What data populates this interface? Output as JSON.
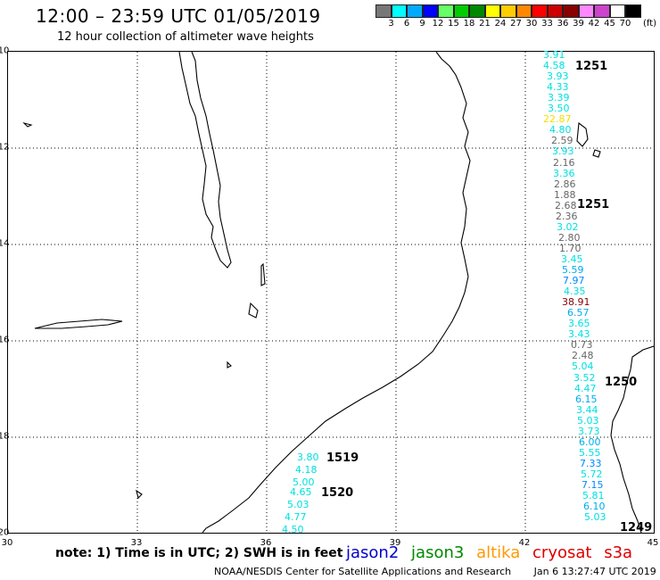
{
  "header": {
    "title": "12:00 – 23:59 UTC 01/05/2019",
    "subtitle": "12 hour collection of altimeter wave heights"
  },
  "legend": {
    "unit": "(ft)",
    "colors": [
      "#777777",
      "#00ffff",
      "#00aaff",
      "#0000ff",
      "#66ff66",
      "#00cc00",
      "#008800",
      "#ffff00",
      "#ffcc00",
      "#ff8800",
      "#ff0000",
      "#cc0000",
      "#880000",
      "#ff88ff",
      "#cc44cc",
      "#ffffff",
      "#000000"
    ],
    "labels": [
      "3",
      "6",
      "9",
      "12",
      "15",
      "18",
      "21",
      "24",
      "27",
      "30",
      "33",
      "36",
      "39",
      "42",
      "45",
      "70"
    ]
  },
  "axes": {
    "lat_labels": [
      "-10",
      "-12",
      "-14",
      "-16",
      "-18",
      "-20"
    ],
    "lon_labels": [
      "30",
      "33",
      "36",
      "39",
      "42",
      "45"
    ]
  },
  "observations_east": [
    {
      "v": "3.91",
      "c": "#00e0e0"
    },
    {
      "v": "4.58",
      "c": "#00e0e0"
    },
    {
      "v": "3.93",
      "c": "#00e0e0"
    },
    {
      "v": "4.33",
      "c": "#00e0e0"
    },
    {
      "v": "3.39",
      "c": "#00e0e0"
    },
    {
      "v": "3.50",
      "c": "#00e0e0"
    },
    {
      "v": "22.87",
      "c": "#f0e000"
    },
    {
      "v": "4.80",
      "c": "#00e0e0"
    },
    {
      "v": "2.59",
      "c": "#666666"
    },
    {
      "v": "3.93",
      "c": "#00e0e0"
    },
    {
      "v": "2.16",
      "c": "#666666"
    },
    {
      "v": "3.36",
      "c": "#00e0e0"
    },
    {
      "v": "2.86",
      "c": "#666666"
    },
    {
      "v": "1.88",
      "c": "#666666"
    },
    {
      "v": "2.68",
      "c": "#666666"
    },
    {
      "v": "2.36",
      "c": "#666666"
    },
    {
      "v": "3.02",
      "c": "#00e0e0"
    },
    {
      "v": "2.80",
      "c": "#666666"
    },
    {
      "v": "1.70",
      "c": "#666666"
    },
    {
      "v": "3.45",
      "c": "#00e0e0"
    },
    {
      "v": "5.59",
      "c": "#00aaee"
    },
    {
      "v": "7.97",
      "c": "#0088ff"
    },
    {
      "v": "4.35",
      "c": "#00e0e0"
    },
    {
      "v": "38.91",
      "c": "#880000"
    },
    {
      "v": "6.57",
      "c": "#00aaee"
    },
    {
      "v": "3.65",
      "c": "#00e0e0"
    },
    {
      "v": "3.43",
      "c": "#00e0e0"
    },
    {
      "v": "0.73",
      "c": "#666666"
    },
    {
      "v": "2.48",
      "c": "#666666"
    },
    {
      "v": "5.04",
      "c": "#00e0e0"
    },
    {
      "v": "3.52",
      "c": "#00e0e0"
    },
    {
      "v": "4.47",
      "c": "#00e0e0"
    },
    {
      "v": "6.15",
      "c": "#00aaee"
    },
    {
      "v": "3.44",
      "c": "#00e0e0"
    },
    {
      "v": "5.03",
      "c": "#00e0e0"
    },
    {
      "v": "3.73",
      "c": "#00e0e0"
    },
    {
      "v": "6.00",
      "c": "#00aaee"
    },
    {
      "v": "5.55",
      "c": "#00e0e0"
    },
    {
      "v": "7.33",
      "c": "#0088ff"
    },
    {
      "v": "5.72",
      "c": "#00e0e0"
    },
    {
      "v": "7.15",
      "c": "#0088ff"
    },
    {
      "v": "5.81",
      "c": "#00e0e0"
    },
    {
      "v": "6.10",
      "c": "#00aaee"
    },
    {
      "v": "5.03",
      "c": "#00e0e0"
    }
  ],
  "observations_west": [
    {
      "v": "3.80",
      "c": "#00e0e0"
    },
    {
      "v": "4.18",
      "c": "#00e0e0"
    },
    {
      "v": "5.00",
      "c": "#00e0e0"
    },
    {
      "v": "4.65",
      "c": "#00e0e0"
    },
    {
      "v": "5.03",
      "c": "#00e0e0"
    },
    {
      "v": "4.77",
      "c": "#00e0e0"
    },
    {
      "v": "4.50",
      "c": "#00e0e0"
    }
  ],
  "pass_times": [
    {
      "v": "1251",
      "c": "#dd0000"
    },
    {
      "v": "1251",
      "c": "#dd0000"
    },
    {
      "v": "1250",
      "c": "#dd0000"
    },
    {
      "v": "1249",
      "c": "#dd0000"
    },
    {
      "v": "1519",
      "c": "#ee9900"
    },
    {
      "v": "1520",
      "c": "#ee9900"
    }
  ],
  "footer": {
    "note": "note:  1) Time is in UTC;  2) SWH is in feet",
    "satellites": [
      {
        "name": "jason2",
        "color": "#0000cc"
      },
      {
        "name": "jason3",
        "color": "#008800"
      },
      {
        "name": "altika",
        "color": "#ff9900"
      },
      {
        "name": "cryosat",
        "color": "#dd0000"
      },
      {
        "name": "s3a",
        "color": "#dd0000"
      }
    ],
    "credit": "NOAA/NESDIS Center for Satellite Applications and Research",
    "timestamp": "Jan  6 13:27:47 UTC 2019"
  }
}
